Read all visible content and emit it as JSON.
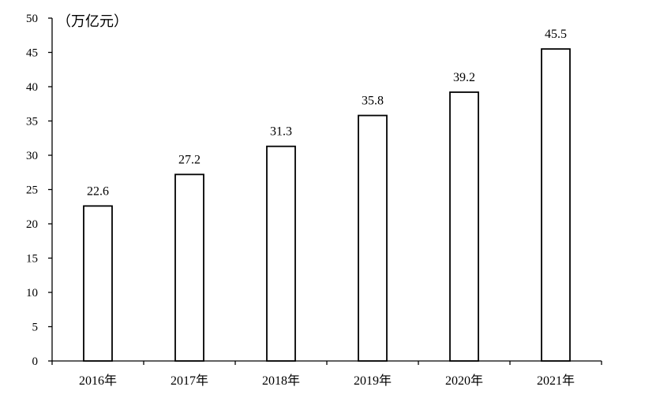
{
  "chart_data": {
    "type": "bar",
    "title": "",
    "unit_label": "（万亿元）",
    "xlabel": "",
    "ylabel": "",
    "categories": [
      "2016年",
      "2017年",
      "2018年",
      "2019年",
      "2020年",
      "2021年"
    ],
    "values": [
      22.6,
      27.2,
      31.3,
      35.8,
      39.2,
      45.5
    ],
    "data_labels": [
      "22.6",
      "27.2",
      "31.3",
      "35.8",
      "39.2",
      "45.5"
    ],
    "ylim": [
      0,
      50
    ],
    "yticks": [
      0,
      5,
      10,
      15,
      20,
      25,
      30,
      35,
      40,
      45,
      50
    ],
    "grid": false,
    "legend": "none",
    "colors": {
      "bar_fill": "#ffffff",
      "bar_stroke": "#000000",
      "axis": "#000000"
    }
  }
}
